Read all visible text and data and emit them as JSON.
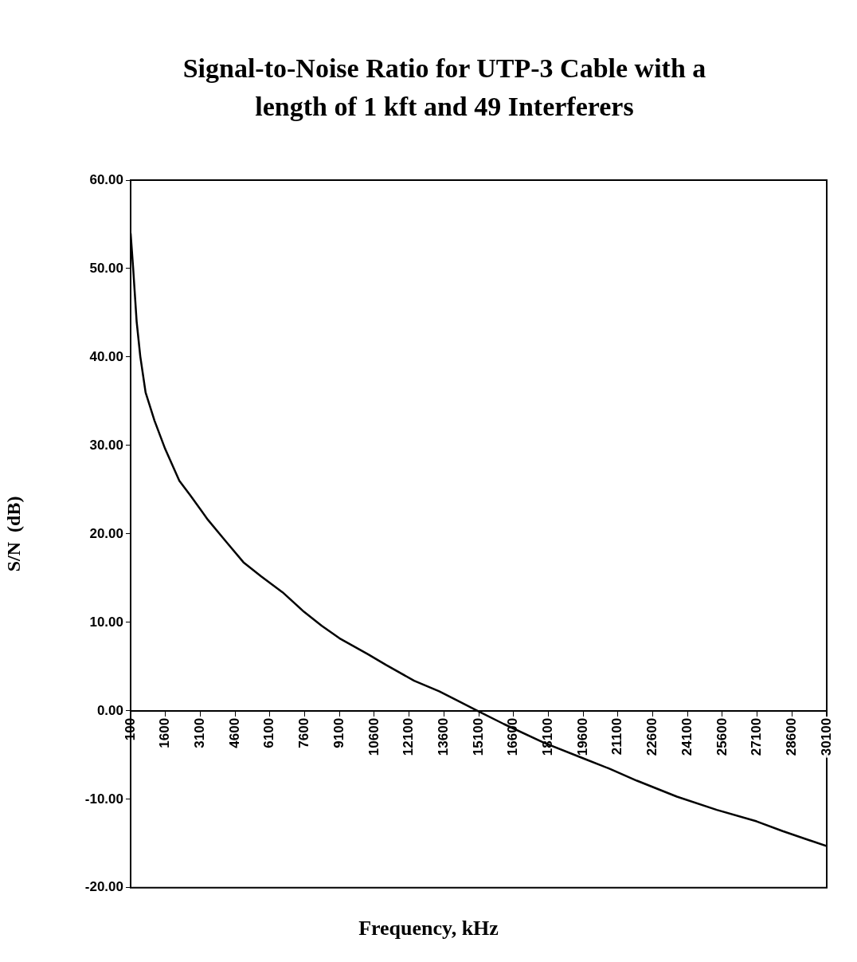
{
  "chart_data": {
    "type": "line",
    "title": "Signal-to-Noise Ratio for UTP-3 Cable with a length of 1 kft and 49 Interferers",
    "xlabel": "Frequency,  kHz",
    "ylabel": "S/N  (dB)",
    "x": [
      100,
      210,
      360,
      515,
      745,
      1130,
      1590,
      2200,
      2660,
      3430,
      4190,
      4960,
      5730,
      6650,
      7570,
      8340,
      9100,
      10330,
      11100,
      12320,
      13400,
      14160,
      15050,
      16190,
      17910,
      19630,
      20790,
      21920,
      23640,
      25360,
      27080,
      28200,
      30100
    ],
    "series": [
      {
        "color": "#000000",
        "values": [
          54,
          50,
          44,
          40.1,
          36,
          32.8,
          29.6,
          26,
          24.4,
          21.6,
          19.2,
          16.8,
          15.2,
          13.4,
          11.2,
          9.6,
          8.2,
          6.4,
          5.2,
          3.4,
          2.2,
          1.2,
          0,
          -1.5,
          -3.6,
          -5.4,
          -6.6,
          -7.9,
          -9.7,
          -11.2,
          -12.5,
          -13.6,
          -15.3
        ]
      }
    ],
    "xlim": [
      100,
      30100
    ],
    "xticks": [
      100,
      1600,
      3100,
      4600,
      6100,
      7600,
      9100,
      10600,
      12100,
      13600,
      15100,
      16600,
      18100,
      19600,
      21100,
      22600,
      24100,
      25600,
      27100,
      28600,
      30100
    ],
    "ylim": [
      -20,
      60
    ],
    "yticks": [
      {
        "value": -20,
        "label": "-20.00"
      },
      {
        "value": -10,
        "label": "-10.00"
      },
      {
        "value": 0,
        "label": "0.00"
      },
      {
        "value": 10,
        "label": "10.00"
      },
      {
        "value": 20,
        "label": "20.00"
      },
      {
        "value": 30,
        "label": "30.00"
      },
      {
        "value": 40,
        "label": "40.00"
      },
      {
        "value": 50,
        "label": "50.00"
      },
      {
        "value": 60,
        "label": "60.00"
      }
    ],
    "grid": false,
    "legend": false,
    "marker": "none",
    "line_style": "solid"
  }
}
